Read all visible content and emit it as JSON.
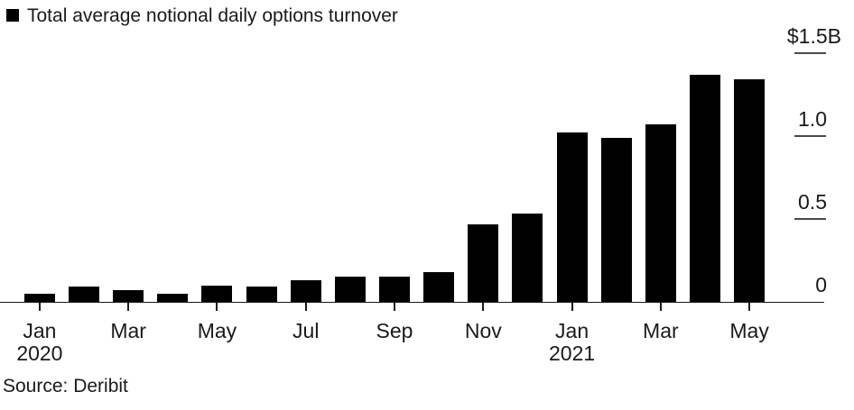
{
  "colors": {
    "bar": "#000000",
    "text": "#1a1a1a",
    "axis": "#1a1a1a",
    "tick_dash": "#4a4a4a",
    "background": "#ffffff"
  },
  "source": "Source: Deribit",
  "chart_data": {
    "type": "bar",
    "categories": [
      "Jan 2020",
      "Feb 2020",
      "Mar 2020",
      "Apr 2020",
      "May 2020",
      "Jun 2020",
      "Jul 2020",
      "Aug 2020",
      "Sep 2020",
      "Oct 2020",
      "Nov 2020",
      "Dec 2020",
      "Jan 2021",
      "Feb 2021",
      "Mar 2021",
      "Apr 2021",
      "May 2021"
    ],
    "values": [
      0.05,
      0.09,
      0.07,
      0.05,
      0.1,
      0.09,
      0.13,
      0.15,
      0.15,
      0.18,
      0.47,
      0.53,
      1.02,
      0.99,
      1.07,
      1.37,
      1.34
    ],
    "ylim": [
      0,
      1.5
    ],
    "grid": false,
    "legend_position": "top-left",
    "legend": [
      {
        "label": "Total average notional daily options turnover",
        "color": "#000000"
      }
    ],
    "y_axis_side": "right",
    "y_ticks": [
      {
        "text": "$1.5B",
        "value": 1.5
      },
      {
        "text": "1.0",
        "value": 1.0
      },
      {
        "text": "0.5",
        "value": 0.5
      },
      {
        "text": "0",
        "value": 0
      }
    ],
    "x_ticks": [
      {
        "text": "Jan",
        "year": "2020",
        "month_index": 0
      },
      {
        "text": "Mar",
        "month_index": 2
      },
      {
        "text": "May",
        "month_index": 4
      },
      {
        "text": "Jul",
        "month_index": 6
      },
      {
        "text": "Sep",
        "month_index": 8
      },
      {
        "text": "Nov",
        "month_index": 10
      },
      {
        "text": "Jan",
        "year": "2021",
        "month_index": 12
      },
      {
        "text": "Mar",
        "month_index": 14
      },
      {
        "text": "May",
        "month_index": 16
      }
    ]
  }
}
